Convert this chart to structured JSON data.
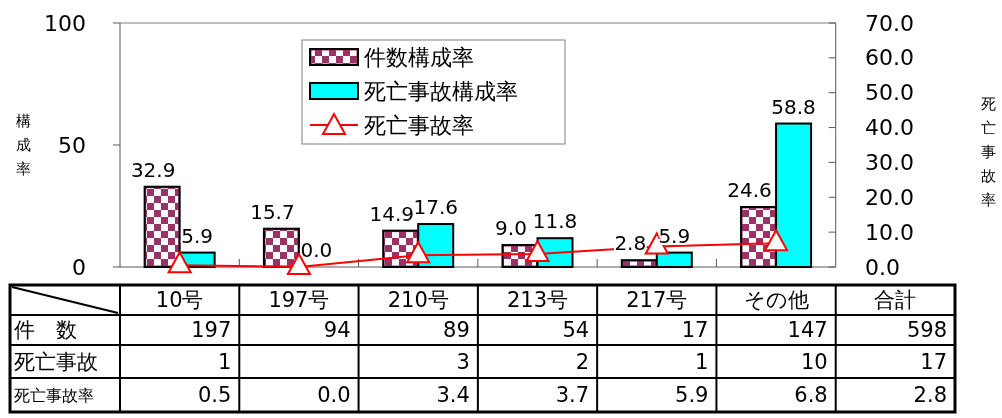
{
  "chart_data": {
    "type": "bar",
    "ylabel": "構成率",
    "y2label": "死亡事故率",
    "categories": [
      "10号",
      "197号",
      "210号",
      "213号",
      "217号",
      "その他",
      "合計"
    ],
    "series": [
      {
        "name": "件数構成率",
        "color": "#993366",
        "values": [
          32.9,
          15.7,
          14.9,
          9.0,
          2.8,
          24.6,
          null
        ],
        "value_labels": [
          "32.9",
          "15.7",
          "14.9",
          "9.0",
          "2.8",
          "24.6",
          null
        ]
      },
      {
        "name": "死亡事故構成率",
        "color": "#00ffff",
        "values": [
          5.9,
          0.0,
          17.6,
          11.8,
          5.9,
          58.8,
          null
        ],
        "value_labels": [
          "5.9",
          "0.0",
          "17.6",
          "11.8",
          "5.9",
          "58.8",
          null
        ]
      },
      {
        "name": "死亡事故率",
        "type": "line",
        "axis": "y2",
        "color": "#ff0000",
        "marker": "triangle",
        "values": [
          0.5,
          0.0,
          3.4,
          3.7,
          5.9,
          6.8,
          null
        ],
        "value_labels": [
          "0.5",
          "0.0",
          "3.4",
          "3.7",
          "5.9",
          "6.8",
          "2.8"
        ]
      },
      {
        "name": "件　数",
        "type": "other",
        "values": [
          null,
          null,
          null,
          null,
          null,
          null,
          null
        ],
        "value_labels": [
          "197",
          "94",
          "89",
          "54",
          "17",
          "147",
          "598"
        ]
      },
      {
        "name": "死亡事故",
        "type": "other",
        "values": [
          null,
          null,
          null,
          null,
          null,
          null,
          null
        ],
        "value_labels": [
          "1",
          null,
          "3",
          "2",
          "1",
          "10",
          "17"
        ]
      }
    ],
    "ylim": [
      0,
      100
    ],
    "yticks": [
      0,
      50,
      100
    ],
    "y2lim": [
      0,
      70
    ],
    "y2ticks": [
      {
        "value": 0,
        "label": "0.0"
      },
      {
        "value": 10,
        "label": "10.0"
      },
      {
        "value": 20,
        "label": "20.0"
      },
      {
        "value": 30,
        "label": "30.0"
      },
      {
        "value": 40,
        "label": "40.0"
      },
      {
        "value": 50,
        "label": "50.0"
      },
      {
        "value": 60,
        "label": "60.0"
      },
      {
        "value": 70,
        "label": "70.0"
      }
    ],
    "legend": "top",
    "grid": false
  }
}
